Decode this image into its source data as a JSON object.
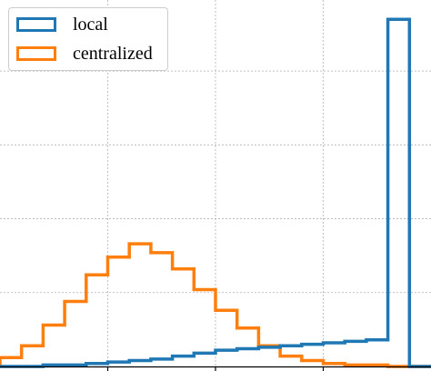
{
  "chart_data": {
    "type": "histogram",
    "title": "",
    "xlabel": "",
    "ylabel": "",
    "xlim": [
      0.0,
      1.0
    ],
    "ylim": [
      0.0,
      2.45
    ],
    "grid": true,
    "legend_position": "top-left",
    "bin_edges": [
      0.0,
      0.05,
      0.1,
      0.15,
      0.2,
      0.25,
      0.3,
      0.35,
      0.4,
      0.45,
      0.5,
      0.55,
      0.6,
      0.65,
      0.7,
      0.75,
      0.8,
      0.85,
      0.9,
      0.95,
      1.0
    ],
    "series": [
      {
        "name": "local",
        "color": "#1f77b4",
        "values": [
          0.0,
          0.0,
          0.01,
          0.01,
          0.02,
          0.03,
          0.04,
          0.05,
          0.07,
          0.09,
          0.11,
          0.12,
          0.13,
          0.14,
          0.15,
          0.16,
          0.17,
          0.18,
          2.35,
          0.0
        ]
      },
      {
        "name": "centralized",
        "color": "#ff7f0e",
        "values": [
          0.06,
          0.14,
          0.28,
          0.44,
          0.62,
          0.74,
          0.83,
          0.77,
          0.66,
          0.52,
          0.38,
          0.26,
          0.14,
          0.07,
          0.04,
          0.02,
          0.01,
          0.01,
          0.0,
          0.0
        ]
      }
    ]
  }
}
